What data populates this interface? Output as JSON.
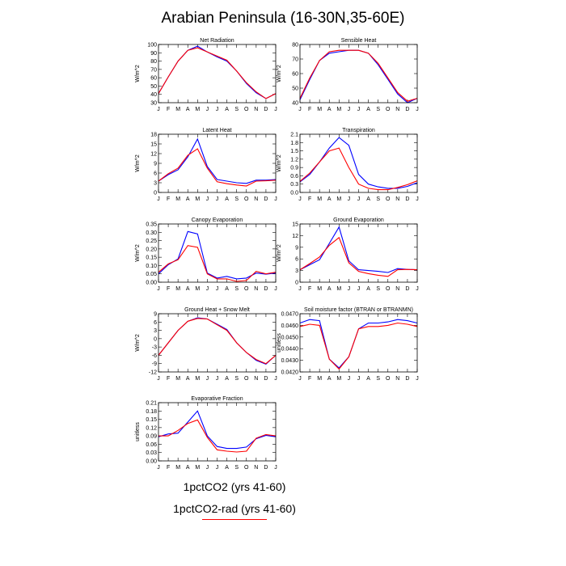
{
  "title": "Arabian Peninsula (16-30N,35-60E)",
  "months": [
    "J",
    "F",
    "M",
    "A",
    "M",
    "J",
    "J",
    "A",
    "S",
    "O",
    "N",
    "D",
    "J"
  ],
  "colors": {
    "series1": "#0000ff",
    "series2": "#ff0000"
  },
  "legend": [
    {
      "label": "1pctCO2 (yrs 41-60)",
      "color": "#0000ff"
    },
    {
      "label": "1pctCO2-rad (yrs 41-60)",
      "color": "#ff0000"
    }
  ],
  "chart_data": [
    {
      "type": "line",
      "title": "Net Radiation",
      "ylabel": "W/m^2",
      "ylim": [
        30,
        100
      ],
      "yticks": [
        30,
        40,
        50,
        60,
        70,
        80,
        90,
        100
      ],
      "ytick_labels": [
        "30",
        "40",
        "50",
        "60",
        "70",
        "80",
        "90",
        "100"
      ],
      "series": [
        {
          "values": [
            41,
            61,
            80,
            93,
            98,
            91,
            85,
            80,
            68,
            53,
            42,
            35,
            41
          ]
        },
        {
          "values": [
            41,
            61,
            80,
            93,
            96,
            91,
            86,
            81,
            68,
            54,
            43,
            35,
            41
          ]
        }
      ]
    },
    {
      "type": "line",
      "title": "Sensible Heat",
      "ylabel": "W/m^2",
      "ylim": [
        40,
        80
      ],
      "yticks": [
        40,
        50,
        60,
        70,
        80
      ],
      "ytick_labels": [
        "40",
        "50",
        "60",
        "70",
        "80"
      ],
      "series": [
        {
          "values": [
            42,
            56,
            69,
            74,
            75,
            76,
            76,
            74,
            66,
            56,
            46,
            40,
            43
          ]
        },
        {
          "values": [
            43,
            57,
            69,
            75,
            76,
            76,
            76,
            74,
            67,
            57,
            47,
            41,
            43
          ]
        }
      ]
    },
    {
      "type": "line",
      "title": "Latent Heat",
      "ylabel": "W/m^2",
      "ylim": [
        0,
        18
      ],
      "yticks": [
        0,
        3,
        6,
        9,
        12,
        15,
        18
      ],
      "ytick_labels": [
        "0",
        "3",
        "6",
        "9",
        "12",
        "15",
        "18"
      ],
      "series": [
        {
          "values": [
            3.5,
            5.5,
            7.0,
            11.0,
            16.5,
            8.0,
            4.0,
            3.5,
            3.0,
            2.8,
            3.8,
            3.8,
            4.0
          ]
        },
        {
          "values": [
            3.5,
            5.8,
            7.5,
            11.5,
            13.5,
            7.5,
            3.3,
            2.7,
            2.3,
            2.0,
            3.5,
            3.6,
            3.8
          ]
        }
      ]
    },
    {
      "type": "line",
      "title": "Transpiration",
      "ylabel": "W/m^2",
      "ylim": [
        0,
        2.1
      ],
      "yticks": [
        0,
        0.3,
        0.6,
        0.9,
        1.2,
        1.5,
        1.8,
        2.1
      ],
      "ytick_labels": [
        "0.0",
        "0.3",
        "0.6",
        "0.9",
        "1.2",
        "1.5",
        "1.8",
        "2.1"
      ],
      "series": [
        {
          "values": [
            0.38,
            0.65,
            1.1,
            1.6,
            1.98,
            1.7,
            0.65,
            0.3,
            0.2,
            0.15,
            0.15,
            0.22,
            0.35
          ]
        },
        {
          "values": [
            0.4,
            0.7,
            1.1,
            1.5,
            1.6,
            0.9,
            0.3,
            0.15,
            0.1,
            0.1,
            0.18,
            0.28,
            0.42
          ]
        }
      ]
    },
    {
      "type": "line",
      "title": "Canopy Evaporation",
      "ylabel": "W/m^2",
      "ylim": [
        0,
        0.35
      ],
      "yticks": [
        0,
        0.05,
        0.1,
        0.15,
        0.2,
        0.25,
        0.3,
        0.35
      ],
      "ytick_labels": [
        "0.00",
        "0.05",
        "0.10",
        "0.15",
        "0.20",
        "0.25",
        "0.30",
        "0.35"
      ],
      "series": [
        {
          "values": [
            0.05,
            0.105,
            0.14,
            0.305,
            0.29,
            0.055,
            0.025,
            0.035,
            0.02,
            0.025,
            0.055,
            0.048,
            0.055
          ]
        },
        {
          "values": [
            0.06,
            0.11,
            0.135,
            0.22,
            0.21,
            0.05,
            0.02,
            0.02,
            0.005,
            0.01,
            0.065,
            0.05,
            0.06
          ]
        }
      ]
    },
    {
      "type": "line",
      "title": "Ground Evaporation",
      "ylabel": "W/m^2",
      "ylim": [
        0,
        15
      ],
      "yticks": [
        0,
        3,
        6,
        9,
        12,
        15
      ],
      "ytick_labels": [
        "0",
        "3",
        "6",
        "9",
        "12",
        "15"
      ],
      "series": [
        {
          "values": [
            3.2,
            4.5,
            5.8,
            10.0,
            14.2,
            5.5,
            3.2,
            3.0,
            2.8,
            2.5,
            3.5,
            3.3,
            3.2
          ]
        },
        {
          "values": [
            3.2,
            4.8,
            6.5,
            9.5,
            11.5,
            5.0,
            2.8,
            2.2,
            1.8,
            1.5,
            3.2,
            3.3,
            3.2
          ]
        }
      ]
    },
    {
      "type": "line",
      "title": "Ground Heat + Snow Melt",
      "ylabel": "W/m^2",
      "ylim": [
        -12,
        9
      ],
      "yticks": [
        -12,
        -9,
        -6,
        -3,
        0,
        3,
        6,
        9
      ],
      "ytick_labels": [
        "-12",
        "-9",
        "-6",
        "-3",
        "0",
        "3",
        "6",
        "9"
      ],
      "series": [
        {
          "values": [
            -6,
            -1.5,
            3,
            6.3,
            7.5,
            7.1,
            5.2,
            3.3,
            -1.5,
            -5,
            -7.8,
            -9.2,
            -6
          ]
        },
        {
          "values": [
            -6,
            -1.5,
            3,
            6.3,
            7.3,
            7.1,
            5.0,
            3.0,
            -1.5,
            -5,
            -7.5,
            -9.0,
            -6
          ]
        }
      ]
    },
    {
      "type": "line",
      "title": "Soil moisture factor (BTRAN or BTRANMN)",
      "ylabel": "unitless",
      "ylim": [
        0.042,
        0.047
      ],
      "yticks": [
        0.042,
        0.043,
        0.044,
        0.045,
        0.046,
        0.047
      ],
      "ytick_labels": [
        "0.0420",
        "0.0430",
        "0.0440",
        "0.0450",
        "0.0460",
        "0.0470"
      ],
      "series": [
        {
          "values": [
            0.0462,
            0.0465,
            0.0464,
            0.0431,
            0.04235,
            0.0433,
            0.0457,
            0.0462,
            0.0462,
            0.0463,
            0.0465,
            0.0464,
            0.0462
          ]
        },
        {
          "values": [
            0.0459,
            0.0461,
            0.046,
            0.0431,
            0.04225,
            0.0433,
            0.0457,
            0.0459,
            0.0459,
            0.046,
            0.0462,
            0.0461,
            0.0459
          ]
        }
      ]
    },
    {
      "type": "line",
      "title": "Evaporative Fraction",
      "ylabel": "unitless",
      "ylim": [
        0,
        0.21
      ],
      "yticks": [
        0,
        0.03,
        0.06,
        0.09,
        0.12,
        0.15,
        0.18,
        0.21
      ],
      "ytick_labels": [
        "0.00",
        "0.03",
        "0.06",
        "0.09",
        "0.12",
        "0.15",
        "0.18",
        "0.21"
      ],
      "series": [
        {
          "values": [
            0.087,
            0.097,
            0.1,
            0.14,
            0.18,
            0.09,
            0.052,
            0.045,
            0.045,
            0.05,
            0.08,
            0.092,
            0.087
          ]
        },
        {
          "values": [
            0.09,
            0.09,
            0.11,
            0.135,
            0.148,
            0.085,
            0.04,
            0.035,
            0.032,
            0.035,
            0.082,
            0.095,
            0.09
          ]
        }
      ]
    }
  ]
}
